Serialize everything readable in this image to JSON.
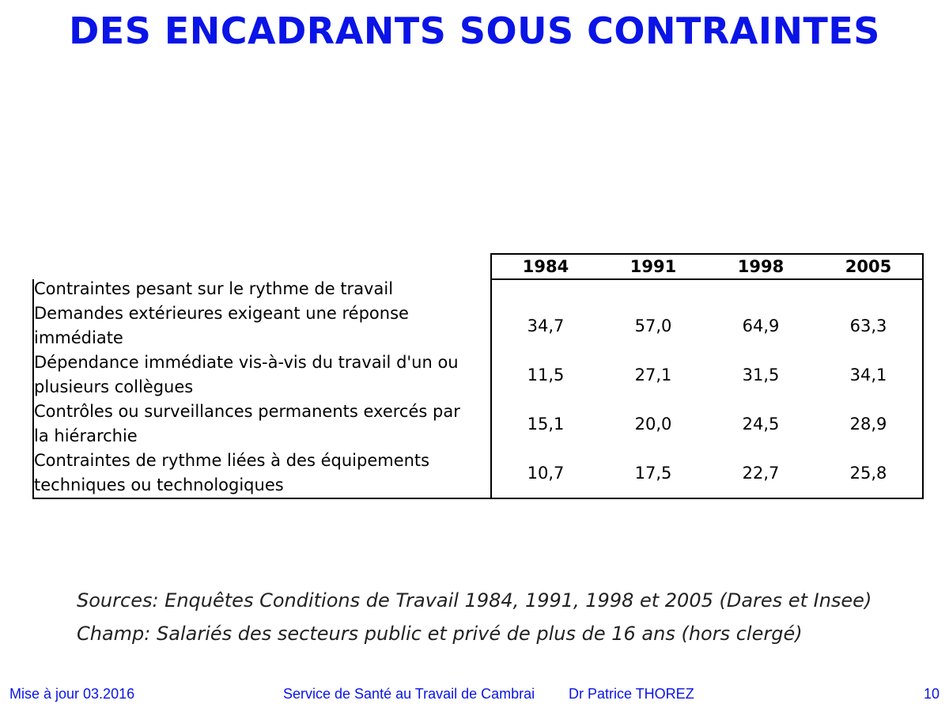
{
  "title": "DES ENCADRANTS SOUS CONTRAINTES",
  "table": {
    "years": [
      "1984",
      "1991",
      "1998",
      "2005"
    ],
    "category": "Contraintes pesant sur le rythme de travail",
    "rows": [
      {
        "line1": "Demandes extérieures exigeant une réponse",
        "line2": "immédiate",
        "values": [
          "34,7",
          "57,0",
          "64,9",
          "63,3"
        ]
      },
      {
        "line1": "Dépendance immédiate vis-à-vis du travail d'un ou",
        "line2": "plusieurs collègues",
        "values": [
          "11,5",
          "27,1",
          "31,5",
          "34,1"
        ]
      },
      {
        "line1": "Contrôles ou surveillances permanents exercés par",
        "line2": "la hiérarchie",
        "values": [
          "15,1",
          "20,0",
          "24,5",
          "28,9"
        ]
      },
      {
        "line1": "Contraintes de rythme liées à des équipements",
        "line2": "techniques ou technologiques",
        "values": [
          "10,7",
          "17,5",
          "22,7",
          "25,8"
        ]
      }
    ]
  },
  "sources": {
    "line1": "Sources: Enquêtes Conditions de Travail 1984, 1991, 1998 et 2005 (Dares et Insee)",
    "line2": "Champ: Salariés des secteurs public et privé de plus de 16 ans (hors clergé)"
  },
  "footer": {
    "updated": "Mise à jour 03.2016",
    "service": "Service de Santé au Travail de Cambrai",
    "author": "Dr Patrice THOREZ",
    "page": "10"
  }
}
